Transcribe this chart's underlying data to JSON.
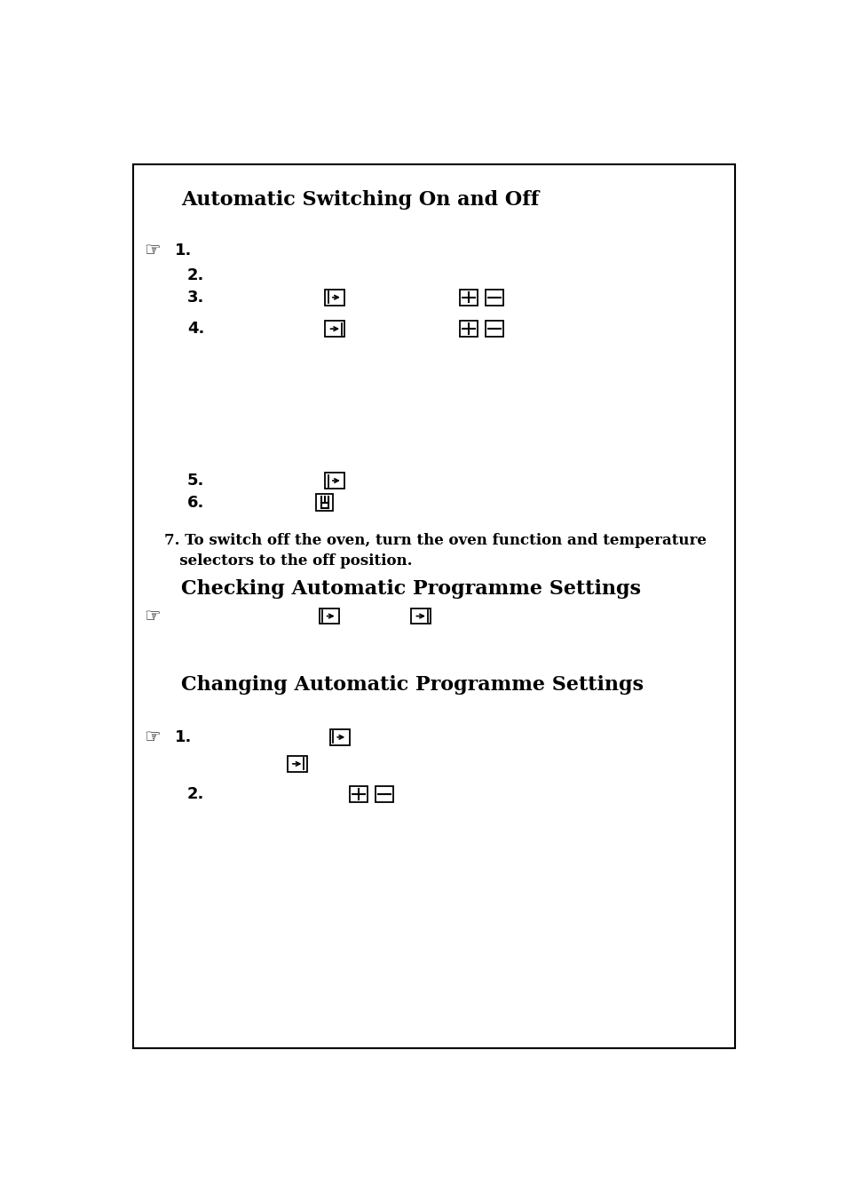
{
  "title1": "Automatic Switching On and Off",
  "title2": "Checking Automatic Programme Settings",
  "title3": "Changing Automatic Programme Settings",
  "step7_line1": "7. To switch off the oven, turn the oven function and temperature",
  "step7_line2": "   selectors to the off position.",
  "background_color": "#ffffff",
  "border_color": "#000000",
  "text_color": "#000000",
  "title_fontsize": 16,
  "body_fontsize": 12,
  "number_fontsize": 13,
  "icon_fontsize": 15
}
